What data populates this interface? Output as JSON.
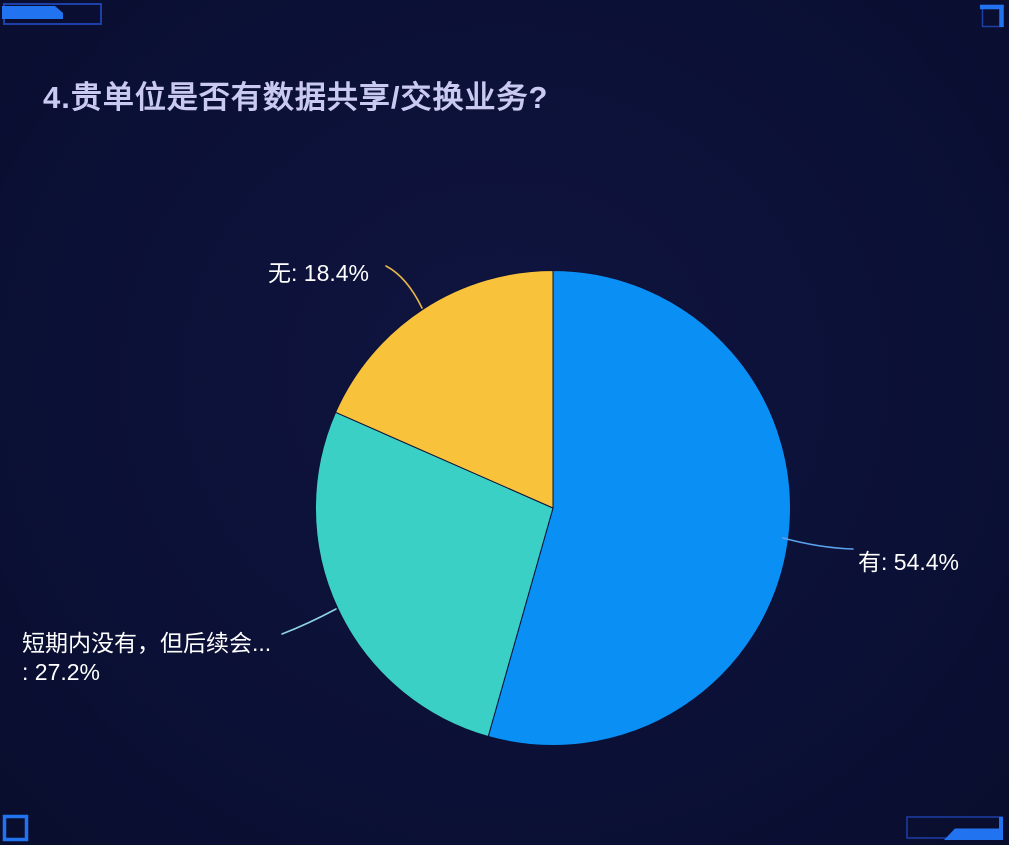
{
  "page": {
    "background_color": "#0b1036",
    "accent_bright_blue": "#2273f0",
    "accent_dim_blue": "#1d3fa8"
  },
  "chart_data": {
    "type": "pie",
    "title": "4.贵单位是否有数据共享/交换业务?",
    "title_color": "#c9c9f2",
    "label_position": "outside",
    "legend": "none",
    "start_angle_deg": 0,
    "clockwise": true,
    "unit": "%",
    "series": [
      {
        "name": "有",
        "value": 54.4,
        "color": "#0a90f5",
        "leader_color": "#5aa2ec",
        "label": "有: 54.4%"
      },
      {
        "name": "短期内没有，但后续会有",
        "value": 27.2,
        "color": "#3ad0c6",
        "leader_color": "#8fd2e6",
        "label_line1": "短期内没有，但后续会...",
        "label_line2": ": 27.2%"
      },
      {
        "name": "无",
        "value": 18.4,
        "color": "#f9c23b",
        "leader_color": "#e8b44c",
        "label": "无: 18.4%"
      }
    ]
  }
}
